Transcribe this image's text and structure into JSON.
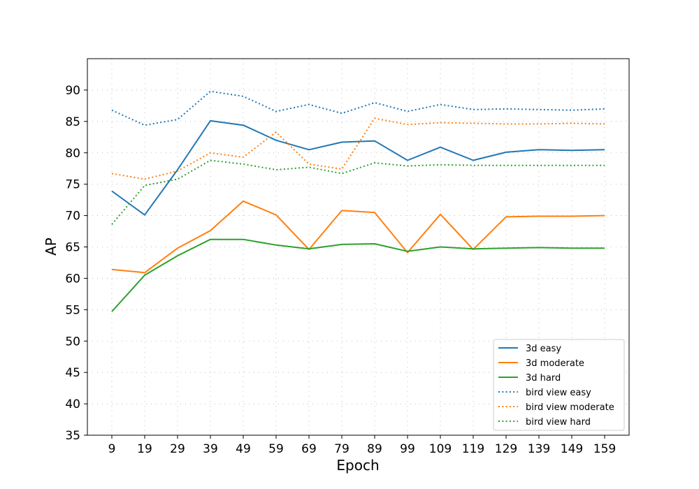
{
  "chart_data": {
    "type": "line",
    "xlabel": "Epoch",
    "ylabel": "AP",
    "categories": [
      "9",
      "19",
      "29",
      "39",
      "49",
      "59",
      "69",
      "79",
      "89",
      "99",
      "109",
      "119",
      "129",
      "139",
      "149",
      "159"
    ],
    "ylim": [
      35,
      95
    ],
    "yticks": [
      35,
      40,
      45,
      50,
      55,
      60,
      65,
      70,
      75,
      80,
      85,
      90
    ],
    "grid": true,
    "legend_position": "bottom-right",
    "series": [
      {
        "name": "3d easy",
        "color": "#1f77b4",
        "style": "solid",
        "values": [
          73.9,
          70.1,
          77.3,
          85.1,
          84.4,
          82.0,
          80.5,
          81.7,
          81.9,
          78.8,
          80.9,
          78.8,
          80.1,
          80.5,
          80.4,
          80.5
        ]
      },
      {
        "name": "3d moderate",
        "color": "#ff7f0e",
        "style": "solid",
        "values": [
          61.4,
          60.9,
          64.8,
          67.6,
          72.3,
          70.1,
          64.6,
          70.8,
          70.5,
          64.1,
          70.2,
          64.6,
          69.8,
          69.9,
          69.9,
          70.0
        ]
      },
      {
        "name": "3d hard",
        "color": "#2ca02c",
        "style": "solid",
        "values": [
          54.7,
          60.5,
          63.6,
          66.2,
          66.2,
          65.3,
          64.7,
          65.4,
          65.5,
          64.3,
          65.0,
          64.7,
          64.8,
          64.9,
          64.8,
          64.8
        ]
      },
      {
        "name": "bird view easy",
        "color": "#1f77b4",
        "style": "dotted",
        "values": [
          86.8,
          84.4,
          85.3,
          89.8,
          89.0,
          86.6,
          87.7,
          86.3,
          88.0,
          86.6,
          87.7,
          86.9,
          87.0,
          86.9,
          86.8,
          87.0
        ]
      },
      {
        "name": "bird view moderate",
        "color": "#ff7f0e",
        "style": "dotted",
        "values": [
          76.7,
          75.8,
          77.1,
          80.0,
          79.3,
          83.3,
          78.2,
          77.4,
          85.5,
          84.5,
          84.8,
          84.7,
          84.6,
          84.6,
          84.7,
          84.6
        ]
      },
      {
        "name": "bird view hard",
        "color": "#2ca02c",
        "style": "dotted",
        "values": [
          68.6,
          74.8,
          75.8,
          78.8,
          78.2,
          77.3,
          77.7,
          76.7,
          78.4,
          77.9,
          78.1,
          78.0,
          78.0,
          78.0,
          78.0,
          78.0
        ]
      }
    ]
  }
}
